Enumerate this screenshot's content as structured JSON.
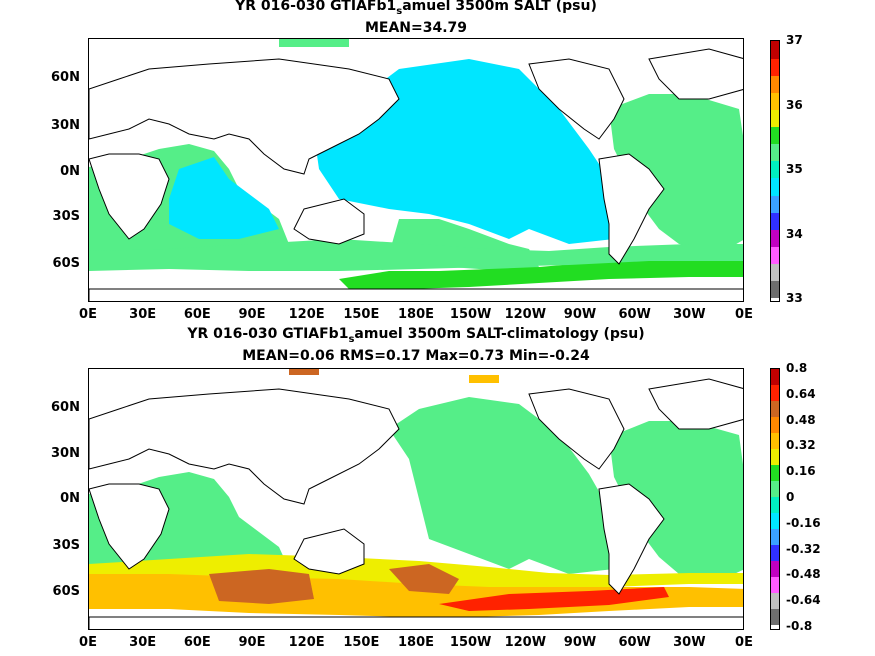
{
  "panels": [
    {
      "title": "YR 016-030 GTIAFb1_samuel 3500m SALT (psu)",
      "title_main": "YR 016-030 GTIAFb1",
      "title_sub": "s",
      "title_rest": "amuel 3500m SALT (psu)",
      "stats": "MEAN=34.79",
      "colorbar_labels": [
        "37",
        "36",
        "35",
        "34",
        "33"
      ],
      "colors": [
        "#6e6e6e",
        "#c0c0c0",
        "#ff5bff",
        "#c000c0",
        "#3030ff",
        "#3aa0ff",
        "#00e6ff",
        "#00f0c0",
        "#55ee88",
        "#22dd22",
        "#eeee00",
        "#ffc000",
        "#ff8800",
        "#ff2200",
        "#c00000"
      ]
    },
    {
      "title": "YR 016-030 GTIAFb1_samuel 3500m SALT-climatology (psu)",
      "title_main": "YR 016-030 GTIAFb1",
      "title_sub": "s",
      "title_rest": "amuel 3500m SALT-climatology (psu)",
      "stats": "MEAN=0.06   RMS=0.17   Max=0.73   Min=-0.24",
      "colorbar_labels": [
        "0.8",
        "0.64",
        "0.48",
        "0.32",
        "0.16",
        "0",
        "-0.16",
        "-0.32",
        "-0.48",
        "-0.64",
        "-0.8"
      ],
      "colors": [
        "#6e6e6e",
        "#c0c0c0",
        "#ff5bff",
        "#c000c0",
        "#3030ff",
        "#3aa0ff",
        "#00e6ff",
        "#00f0c0",
        "#55ee88",
        "#22dd22",
        "#eeee00",
        "#ffc000",
        "#ff8800",
        "#cc6622",
        "#ff2200",
        "#c00000"
      ]
    }
  ],
  "lat_labels": [
    "60N",
    "30N",
    "0N",
    "30S",
    "60S"
  ],
  "lon_labels": [
    "0E",
    "30E",
    "60E",
    "90E",
    "120E",
    "150E",
    "180E",
    "150W",
    "120W",
    "90W",
    "60W",
    "30W",
    "0E"
  ],
  "fill_colors": {
    "ocean_top": "#55ee88",
    "pacific_top": "#00e6ff",
    "southern_top": "#22dd22",
    "ocean_bottom": "#55ee88",
    "anomaly_yellow": "#eeee00",
    "anomaly_orange": "#ffc000",
    "anomaly_dark": "#cc6622",
    "anomaly_red": "#ff2200"
  }
}
